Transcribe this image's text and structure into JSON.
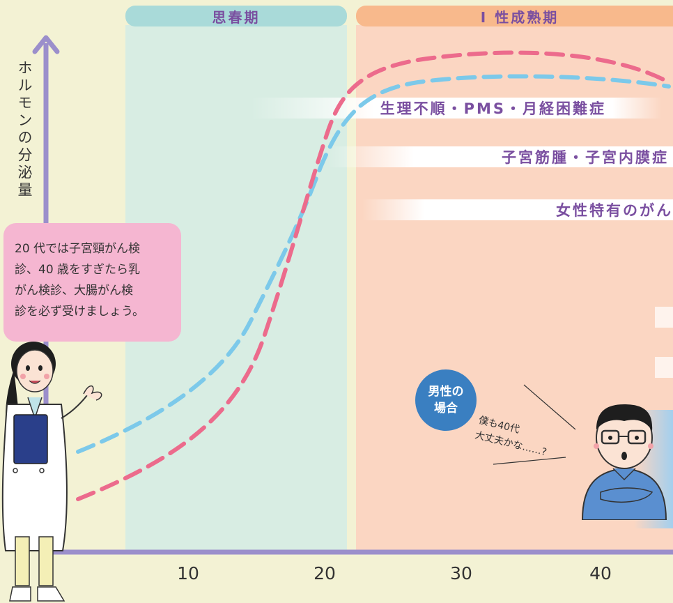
{
  "axis": {
    "y_label": "ホルモンの分泌量",
    "x_ticks": [
      "10",
      "20",
      "30",
      "40"
    ]
  },
  "phases": [
    {
      "label": "思春期",
      "color": "#a9dad9",
      "band_color": "#d8ede3"
    },
    {
      "label": "Ⅰ 性成熟期",
      "color": "#f8b98c",
      "band_color": "#fbd6c2"
    }
  ],
  "conditions": [
    "生理不順・PMS・月経困難症",
    "子宮筋腫・子宮内膜症",
    "女性特有のがん"
  ],
  "advice_bubble": {
    "lines": [
      "20 代では子宮頸がん検",
      "診、40 歳をすぎたら乳",
      "がん検診、大腸がん検",
      "診を必ず受けましょう。"
    ]
  },
  "male_case": {
    "badge_lines": [
      "男性の",
      "場合"
    ],
    "thought_lines": [
      "僕も40代",
      "大丈夫かな……?"
    ]
  },
  "curves": {
    "estrogen_color": "#ec6b8c",
    "progesterone_color": "#7cc9ea",
    "axis_color": "#9b8fcb"
  }
}
